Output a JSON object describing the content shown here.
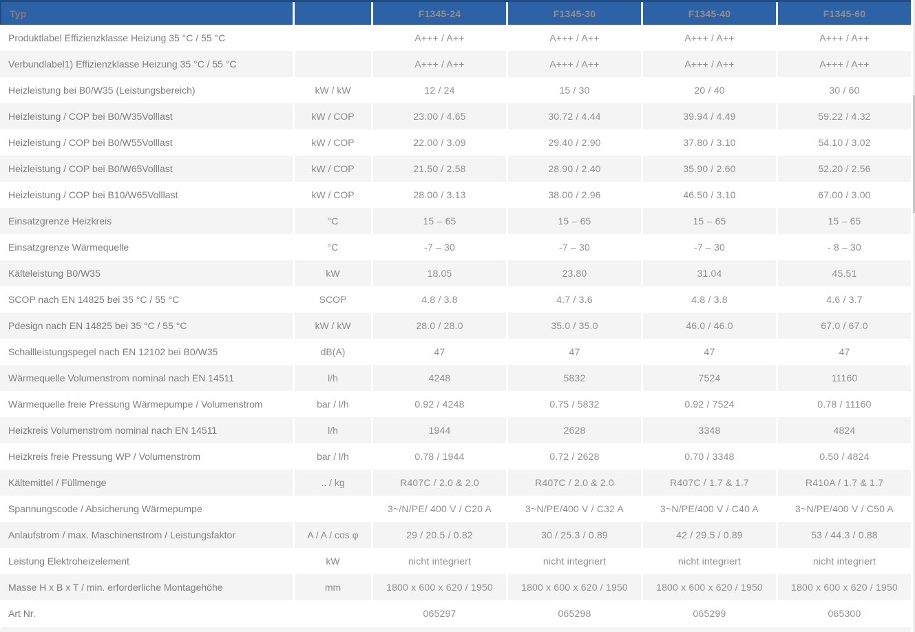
{
  "colors": {
    "header_bg": "#2e62a6",
    "header_border": "#1d4c87",
    "header_text": "#ffffff",
    "row_alt_bg": "#f4f4f4",
    "label_text": "#7d7d7d",
    "unit_text": "#8a8a8a",
    "value_text": "#8f8f8f"
  },
  "chart_data": {
    "type": "table",
    "columns": {
      "label": "Typ",
      "unit": "",
      "models": [
        "F1345-24",
        "F1345-30",
        "F1345-40",
        "F1345-60"
      ]
    },
    "rows": [
      {
        "label": "Produktlabel Effizienzklasse Heizung 35 °C / 55 °C",
        "unit": "",
        "values": [
          "A+++ / A++",
          "A+++ / A++",
          "A+++ / A++",
          "A+++ / A++"
        ]
      },
      {
        "label": "Verbundlabel1) Effizienzklasse Heizung 35 °C / 55 °C",
        "unit": "",
        "values": [
          "A+++ / A++",
          "A+++ / A++",
          "A+++ / A++",
          "A+++ / A++"
        ]
      },
      {
        "label": "Heizleistung bei B0/W35 (Leistungsbereich)",
        "unit": "kW / kW",
        "values": [
          "12 / 24",
          "15 / 30",
          "20 / 40",
          "30 / 60"
        ]
      },
      {
        "label": "Heizleistung / COP bei B0/W35Volllast",
        "unit": "kW / COP",
        "values": [
          "23.00 / 4.65",
          "30.72 / 4.44",
          "39.94 / 4.49",
          "59.22 / 4.32"
        ]
      },
      {
        "label": "Heizleistung / COP bei B0/W55Volllast",
        "unit": "kW / COP",
        "values": [
          "22.00 / 3.09",
          "29.40 / 2.90",
          "37.80 / 3.10",
          "54.10 / 3.02"
        ]
      },
      {
        "label": "Heizleistung / COP bei B0/W65Volllast",
        "unit": "kW / COP",
        "values": [
          "21.50 / 2.58",
          "28.90 / 2.40",
          "35.90 / 2.60",
          "52.20 / 2.56"
        ]
      },
      {
        "label": "Heizleistung / COP bei B10/W65Volllast",
        "unit": "kW / COP",
        "values": [
          "28.00 / 3.13",
          "38.00 / 2.96",
          "46.50 / 3.10",
          "67.00 / 3.00"
        ]
      },
      {
        "label": "Einsatzgrenze Heizkreis",
        "unit": "°C",
        "values": [
          "15 – 65",
          "15 – 65",
          "15 – 65",
          "15 – 65"
        ]
      },
      {
        "label": "Einsatzgrenze Wärmequelle",
        "unit": "°C",
        "values": [
          "-7 – 30",
          "-7 – 30",
          "-7 – 30",
          "- 8 – 30"
        ]
      },
      {
        "label": "Kälteleistung B0/W35",
        "unit": "kW",
        "values": [
          "18.05",
          "23.80",
          "31.04",
          "45.51"
        ]
      },
      {
        "label": "SCOP nach EN 14825 bei 35 °C / 55 °C",
        "unit": "SCOP",
        "values": [
          "4.8 / 3.8",
          "4.7 / 3.6",
          "4.8 / 3.8",
          "4.6 / 3.7"
        ]
      },
      {
        "label": "Pdesign nach EN 14825 bei 35 °C / 55 °C",
        "unit": "kW / kW",
        "values": [
          "28.0 / 28.0",
          "35.0 / 35.0",
          "46.0 / 46.0",
          "67.0 / 67.0"
        ]
      },
      {
        "label": "Schallleistungspegel nach EN 12102 bei B0/W35",
        "unit": "dB(A)",
        "values": [
          "47",
          "47",
          "47",
          "47"
        ]
      },
      {
        "label": "Wärmequelle Volumenstrom nominal nach EN 14511",
        "unit": "l/h",
        "values": [
          "4248",
          "5832",
          "7524",
          "11160"
        ]
      },
      {
        "label": "Wärmequelle freie Pressung Wärmepumpe / Volumenstrom",
        "unit": "bar / l/h",
        "values": [
          "0.92 / 4248",
          "0.75 / 5832",
          "0.92 / 7524",
          "0.78 / 11160"
        ]
      },
      {
        "label": "Heizkreis Volumenstrom nominal nach EN 14511",
        "unit": "l/h",
        "values": [
          "1944",
          "2628",
          "3348",
          "4824"
        ]
      },
      {
        "label": "Heizkreis freie Pressung WP / Volumenstrom",
        "unit": "bar / l/h",
        "values": [
          "0.78 / 1944",
          "0.72 / 2628",
          "0.70 / 3348",
          "0.50 / 4824"
        ]
      },
      {
        "label": "Kältemittel / Füllmenge",
        "unit": ".. / kg",
        "values": [
          "R407C / 2.0 & 2.0",
          "R407C / 2.0 & 2.0",
          "R407C / 1.7 & 1.7",
          "R410A / 1.7 & 1.7"
        ]
      },
      {
        "label": "Spannungscode / Absicherung Wärmepumpe",
        "unit": "",
        "values": [
          "3~/N/PE/ 400 V / C20 A",
          "3~N/PE/400 V / C32 A",
          "3~N/PE/400 V / C40 A",
          "3~N/PE/400 V / C50 A"
        ]
      },
      {
        "label": "Anlaufstrom / max. Maschinenstrom / Leistungsfaktor",
        "unit": "A / A / cos φ",
        "values": [
          "29 / 20.5 / 0.82",
          "30 / 25.3 / 0.89",
          "42 / 29.5 / 0.89",
          "53 / 44.3 / 0.88"
        ]
      },
      {
        "label": "Leistung Elektroheizelement",
        "unit": "kW",
        "values": [
          "nicht integriert",
          "nicht integriert",
          "nicht integriert",
          "nicht integriert"
        ]
      },
      {
        "label": "Masse H x B x T / min. erforderliche Montagehöhe",
        "unit": "mm",
        "values": [
          "1800 x 600 x 620 / 1950",
          "1800 x 600 x 620 / 1950",
          "1800 x 600 x 620 / 1950",
          "1800 x 600 x 620 / 1950"
        ]
      },
      {
        "label": "Art Nr.",
        "unit": "",
        "values": [
          "065297",
          "065298",
          "065299",
          "065300"
        ]
      }
    ]
  }
}
